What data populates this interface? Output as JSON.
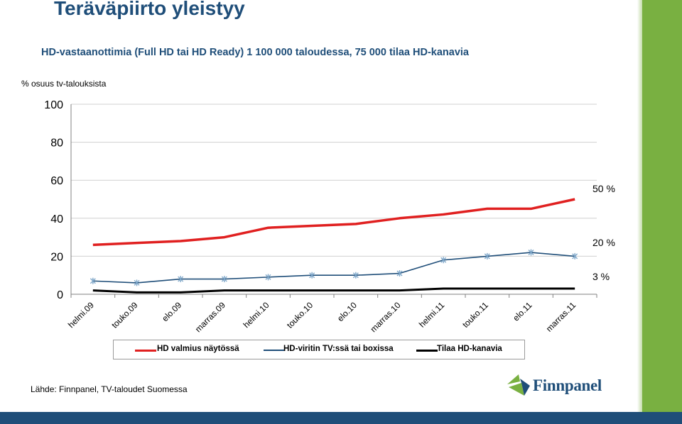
{
  "slide": {
    "title": "Teräväpiirto yleistyy",
    "subtitle": "HD-vastaanottimia (Full HD tai HD Ready) 1 100 000 taloudessa, 75 000 tilaa HD-kanavia",
    "source": "Lähde: Finnpanel, TV-taloudet Suomessa",
    "logo_text": "Finnpanel",
    "colors": {
      "title": "#1f4e79",
      "green_bar": "#79b041",
      "blue_bar": "#1f4e79"
    }
  },
  "chart_data": {
    "type": "line",
    "ylabel": "% osuus tv-talouksista",
    "ylim": [
      0,
      100
    ],
    "yticks": [
      0,
      20,
      40,
      60,
      80,
      100
    ],
    "categories": [
      "helmi.09",
      "touko.09",
      "elo.09",
      "marras.09",
      "helmi.10",
      "touko.10",
      "elo.10",
      "marras.10",
      "helmi.11",
      "touko.11",
      "elo.11",
      "marras.11"
    ],
    "grid": true,
    "legend_position": "bottom",
    "series": [
      {
        "name": "HD valmius näytössä",
        "color": "#e02020",
        "marker": "none",
        "values": [
          26,
          27,
          28,
          30,
          35,
          36,
          37,
          40,
          42,
          45,
          45,
          50
        ],
        "end_label": "50 %"
      },
      {
        "name": "HD-viritin TV:ssä tai boxissa",
        "color": "#1f4e79",
        "marker": "x",
        "values": [
          7,
          6,
          8,
          8,
          9,
          10,
          10,
          11,
          18,
          20,
          22,
          20
        ],
        "end_label": "20 %"
      },
      {
        "name": "Tilaa HD-kanavia",
        "color": "#000000",
        "marker": "none",
        "values": [
          2,
          1,
          1,
          2,
          2,
          2,
          2,
          2,
          3,
          3,
          3,
          3
        ],
        "end_label": "3 %"
      }
    ]
  }
}
